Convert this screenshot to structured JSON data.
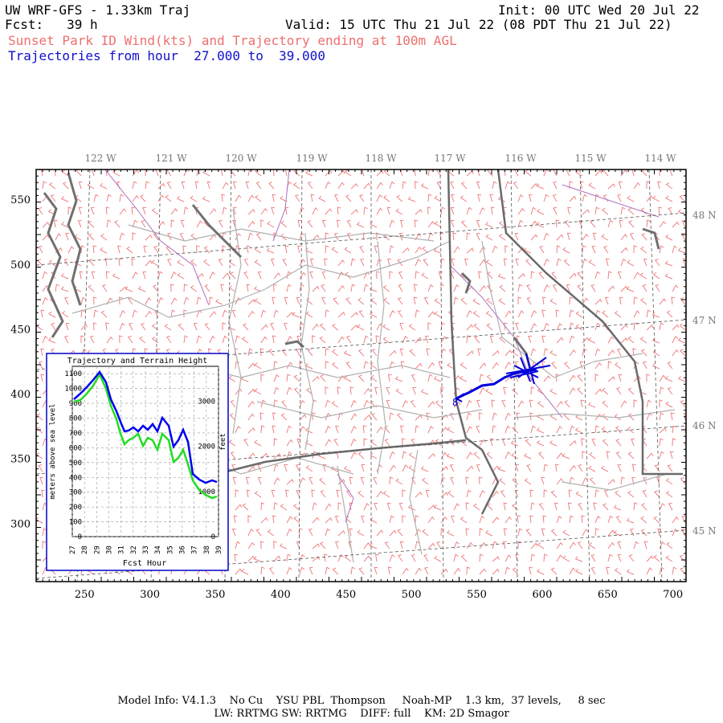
{
  "header": {
    "title_left": "UW WRF-GFS - 1.33km Traj",
    "init": "Init: 00 UTC Wed 20 Jul 22",
    "fcst": "Fcst:   39 h",
    "valid": "Valid: 15 UTC Thu 21 Jul 22 (08 PDT Thu 21 Jul 22)",
    "subtitle_red": "Sunset Park ID Wind(kts) and Trajectory ending at 100m AGL",
    "subtitle_blue": "Trajectories from hour  27.000 to  39.000"
  },
  "map": {
    "lon_labels": [
      "122 W",
      "121 W",
      "120 W",
      "119 W",
      "118 W",
      "117 W",
      "116 W",
      "115 W",
      "114 W"
    ],
    "lat_labels": [
      "48 N",
      "47 N",
      "46 N",
      "45 N"
    ],
    "x_ticks": [
      250,
      300,
      350,
      400,
      450,
      500,
      550,
      600,
      650,
      700
    ],
    "y_ticks": [
      550,
      500,
      450,
      400,
      350,
      300
    ],
    "trajectory_marker": "8",
    "colors": {
      "wind": "#f08080",
      "state_border": "#666666",
      "county": "#aaaaaa",
      "river": "#b070c0",
      "trajectory": "#0000dd"
    }
  },
  "inset": {
    "title": "Trajectory and Terrain Height",
    "ylabel_left": "meters above sea level",
    "ylabel_right": "feet",
    "xlabel": "Fcst Hour",
    "y_left_ticks": [
      "1100",
      "1000",
      "900",
      "800",
      "700",
      "600",
      "500",
      "400",
      "300",
      "200",
      "100",
      "0"
    ],
    "y_right_ticks": [
      "3000",
      "2000",
      "1000",
      "0"
    ],
    "x_ticks": [
      "27",
      "28",
      "29",
      "30",
      "31",
      "32",
      "33",
      "34",
      "35",
      "36",
      "37",
      "38",
      "39"
    ],
    "colors": {
      "trajectory": "#0000ee",
      "terrain": "#22dd22",
      "border": "#0000cc"
    }
  },
  "footer": {
    "line1": "Model Info: V4.1.3    No Cu    YSU PBL  Thompson     Noah-MP    1.3 km,  37 levels,     8 sec",
    "line2": "LW: RRTMG SW: RRTMG    DIFF: full    KM: 2D Smagor"
  }
}
